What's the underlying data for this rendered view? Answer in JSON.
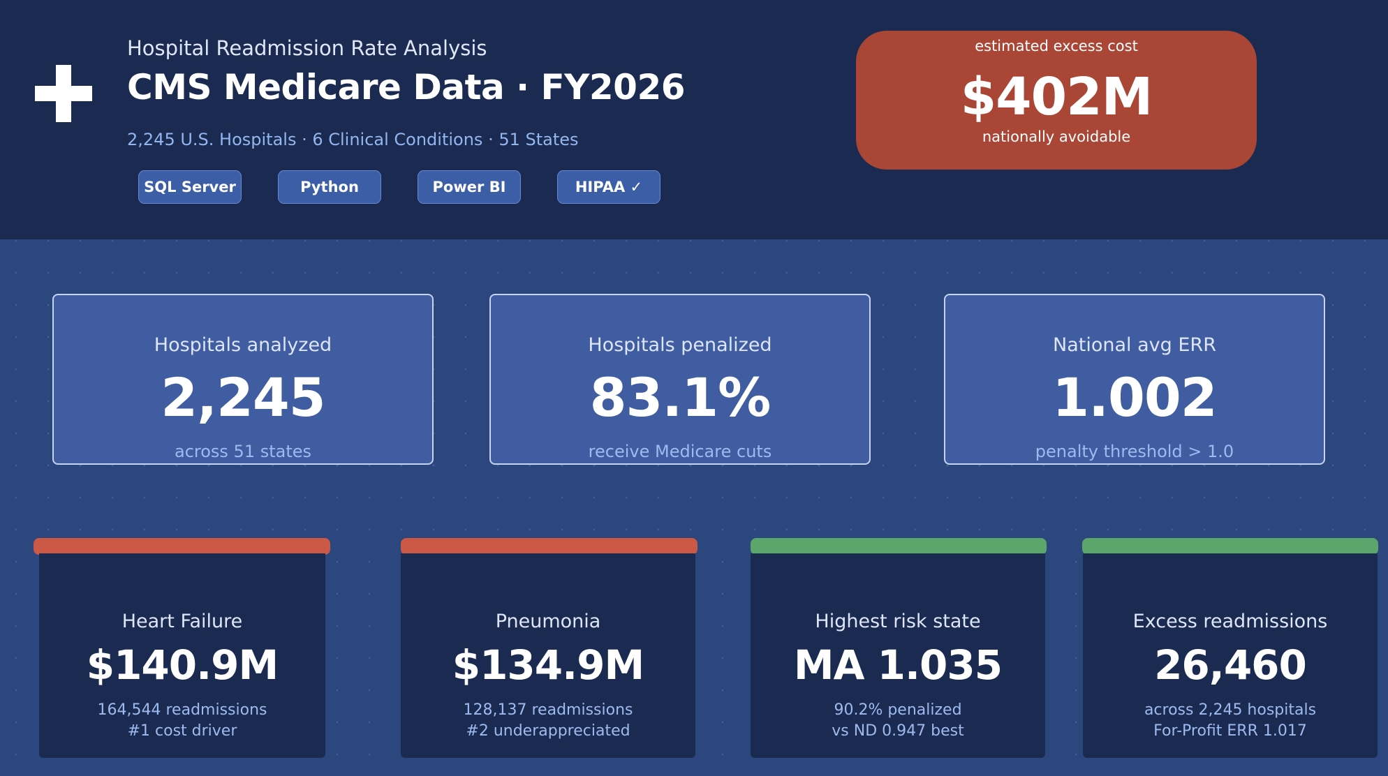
{
  "header": {
    "subtitle": "Hospital Readmission Rate Analysis",
    "title": "CMS Medicare Data · FY2026",
    "meta": "2,245 U.S. Hospitals · 6 Clinical Conditions · 51 States",
    "icon": "medical-cross-icon",
    "tags": [
      "SQL Server",
      "Python",
      "Power BI",
      "HIPAA ✓"
    ]
  },
  "cost": {
    "label": "estimated excess cost",
    "value": "$402M",
    "note": "nationally avoidable",
    "color": "#a94636"
  },
  "stats": [
    {
      "label": "Hospitals analyzed",
      "value": "2,245",
      "note": "across 51 states"
    },
    {
      "label": "Hospitals penalized",
      "value": "83.1%",
      "note": "receive Medicare cuts"
    },
    {
      "label": "National avg ERR",
      "value": "1.002",
      "note": "penalty threshold > 1.0"
    }
  ],
  "metrics": [
    {
      "label": "Heart Failure",
      "value": "$140.9M",
      "line1": "164,544 readmissions",
      "line2": "#1 cost driver",
      "bar_color": "#cc5846"
    },
    {
      "label": "Pneumonia",
      "value": "$134.9M",
      "line1": "128,137 readmissions",
      "line2": "#2 underappreciated",
      "bar_color": "#cc5846"
    },
    {
      "label": "Highest risk state",
      "value": "MA 1.035",
      "line1": "90.2% penalized",
      "line2": "vs ND 0.947 best",
      "bar_color": "#5ba66a"
    },
    {
      "label": "Excess readmissions",
      "value": "26,460",
      "line1": "across 2,245 hospitals",
      "line2": "For-Profit ERR 1.017",
      "bar_color": "#5ba66a"
    }
  ],
  "colors": {
    "header_bg": "#1b2a50",
    "page_bg": "#2c467e",
    "accent_blue": "#93b6ee"
  }
}
